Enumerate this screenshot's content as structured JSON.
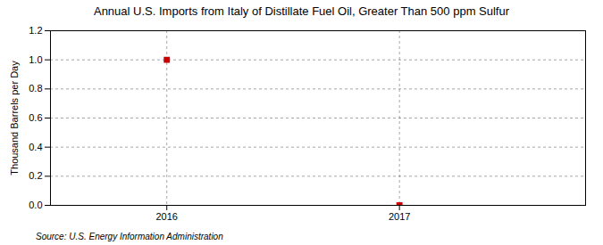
{
  "chart_data": {
    "type": "scatter",
    "title": "Annual U.S. Imports from Italy of Distillate Fuel Oil, Greater Than 500 ppm Sulfur",
    "ylabel": "Thousand Barrels per Day",
    "source": "Source: U.S. Energy Information Administration",
    "x": [
      2016,
      2017
    ],
    "values": [
      1.0,
      0.0
    ],
    "color": "#cc0000",
    "marker": "square",
    "xlim": [
      2015.5,
      2017.8
    ],
    "ylim": [
      0.0,
      1.2
    ],
    "xticks": [
      2016,
      2017
    ],
    "yticks": [
      {
        "value": 0.0,
        "label": "0.0"
      },
      0.2,
      0.4,
      0.6,
      0.8,
      {
        "value": 1.0,
        "label": "1.0"
      },
      1.2
    ],
    "grid": true
  }
}
